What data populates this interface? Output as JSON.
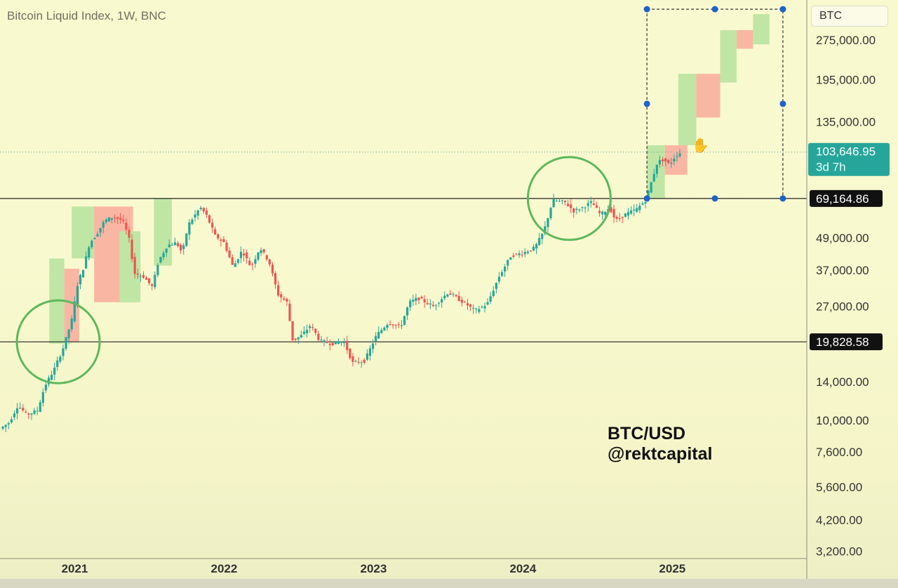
{
  "chart_title": "Bitcoin Liquid Index, 1W, BNC",
  "ticker": "BTC",
  "watermark": {
    "line1": "BTC/USD",
    "line2": "@rektcapital"
  },
  "chart_data": {
    "type": "candlestick",
    "title": "Bitcoin Liquid Index, 1W, BNC",
    "y_scale": "log",
    "ylim": [
      3000,
      390000
    ],
    "xlim": [
      2020.5,
      2025.9
    ],
    "y_ticks": [
      {
        "value": 275000,
        "label": "275,000.00"
      },
      {
        "value": 195000,
        "label": "195,000.00"
      },
      {
        "value": 135000,
        "label": "135,000.00"
      },
      {
        "value": 49000,
        "label": "49,000.00"
      },
      {
        "value": 37000,
        "label": "37,000.00"
      },
      {
        "value": 27000,
        "label": "27,000.00"
      },
      {
        "value": 14000,
        "label": "14,000.00"
      },
      {
        "value": 10000,
        "label": "10,000.00"
      },
      {
        "value": 7600,
        "label": "7,600.00"
      },
      {
        "value": 5600,
        "label": "5,600.00"
      },
      {
        "value": 4200,
        "label": "4,200.00"
      },
      {
        "value": 3200,
        "label": "3,200.00"
      }
    ],
    "x_ticks": [
      {
        "value": 2021,
        "label": "2021"
      },
      {
        "value": 2022,
        "label": "2022"
      },
      {
        "value": 2023,
        "label": "2023"
      },
      {
        "value": 2024,
        "label": "2024"
      },
      {
        "value": 2025,
        "label": "2025"
      }
    ],
    "horizontal_levels": [
      {
        "value": 69164.86,
        "label": "69,164.86"
      },
      {
        "value": 19828.58,
        "label": "19,828.58"
      }
    ],
    "current_price": {
      "value": 103646.95,
      "label": "103,646.95",
      "countdown": "3d 7h"
    },
    "price_path": [
      [
        2020.5,
        9300
      ],
      [
        2020.56,
        9800
      ],
      [
        2020.62,
        11400
      ],
      [
        2020.68,
        10500
      ],
      [
        2020.75,
        10900
      ],
      [
        2020.8,
        13500
      ],
      [
        2020.86,
        15500
      ],
      [
        2020.92,
        18600
      ],
      [
        2020.98,
        24000
      ],
      [
        2021.02,
        33000
      ],
      [
        2021.06,
        38000
      ],
      [
        2021.1,
        47000
      ],
      [
        2021.14,
        50000
      ],
      [
        2021.2,
        57000
      ],
      [
        2021.26,
        59000
      ],
      [
        2021.32,
        57000
      ],
      [
        2021.36,
        50000
      ],
      [
        2021.4,
        36000
      ],
      [
        2021.46,
        35000
      ],
      [
        2021.52,
        32000
      ],
      [
        2021.56,
        40000
      ],
      [
        2021.62,
        46000
      ],
      [
        2021.68,
        47000
      ],
      [
        2021.72,
        43000
      ],
      [
        2021.76,
        55000
      ],
      [
        2021.84,
        64000
      ],
      [
        2021.88,
        60000
      ],
      [
        2021.94,
        50000
      ],
      [
        2022.0,
        47000
      ],
      [
        2022.06,
        38000
      ],
      [
        2022.12,
        44000
      ],
      [
        2022.18,
        38000
      ],
      [
        2022.24,
        45000
      ],
      [
        2022.3,
        40000
      ],
      [
        2022.36,
        30000
      ],
      [
        2022.42,
        28000
      ],
      [
        2022.46,
        20000
      ],
      [
        2022.52,
        21000
      ],
      [
        2022.58,
        23000
      ],
      [
        2022.64,
        20000
      ],
      [
        2022.72,
        19500
      ],
      [
        2022.8,
        20000
      ],
      [
        2022.86,
        16500
      ],
      [
        2022.94,
        16800
      ],
      [
        2023.02,
        21000
      ],
      [
        2023.1,
        23500
      ],
      [
        2023.18,
        22500
      ],
      [
        2023.24,
        28000
      ],
      [
        2023.3,
        29000
      ],
      [
        2023.4,
        27000
      ],
      [
        2023.5,
        30500
      ],
      [
        2023.6,
        28000
      ],
      [
        2023.68,
        26000
      ],
      [
        2023.76,
        27500
      ],
      [
        2023.84,
        35000
      ],
      [
        2023.92,
        42000
      ],
      [
        2024.0,
        43000
      ],
      [
        2024.08,
        45000
      ],
      [
        2024.14,
        52000
      ],
      [
        2024.2,
        68000
      ],
      [
        2024.28,
        67000
      ],
      [
        2024.34,
        62000
      ],
      [
        2024.4,
        64000
      ],
      [
        2024.46,
        67000
      ],
      [
        2024.52,
        60000
      ],
      [
        2024.58,
        64000
      ],
      [
        2024.62,
        57000
      ],
      [
        2024.68,
        60000
      ],
      [
        2024.76,
        63000
      ],
      [
        2024.82,
        68000
      ],
      [
        2024.86,
        80000
      ],
      [
        2024.9,
        95000
      ],
      [
        2024.94,
        97000
      ],
      [
        2024.98,
        93000
      ],
      [
        2025.02,
        100000
      ],
      [
        2025.06,
        103646.95
      ]
    ],
    "projection_boxes": [
      {
        "direction": "up",
        "x0": 2020.83,
        "x1": 2020.93,
        "low": 19500,
        "high": 41000
      },
      {
        "direction": "down",
        "x0": 2020.93,
        "x1": 2021.03,
        "low": 19800,
        "high": 37500
      },
      {
        "direction": "up",
        "x0": 2020.98,
        "x1": 2021.13,
        "low": 41000,
        "high": 64500
      },
      {
        "direction": "down",
        "x0": 2021.13,
        "x1": 2021.39,
        "low": 28000,
        "high": 64500
      },
      {
        "direction": "up",
        "x0": 2021.3,
        "x1": 2021.44,
        "low": 28000,
        "high": 52000
      },
      {
        "direction": "up",
        "x0": 2021.53,
        "x1": 2021.65,
        "low": 38500,
        "high": 69000
      },
      {
        "direction": "up",
        "x0": 2024.83,
        "x1": 2024.95,
        "low": 69164.86,
        "high": 110000
      },
      {
        "direction": "down",
        "x0": 2024.95,
        "x1": 2025.1,
        "low": 85000,
        "high": 110000
      },
      {
        "direction": "up",
        "x0": 2025.04,
        "x1": 2025.16,
        "low": 110000,
        "high": 205000
      },
      {
        "direction": "down",
        "x0": 2025.16,
        "x1": 2025.32,
        "low": 140000,
        "high": 205000
      },
      {
        "direction": "up",
        "x0": 2025.32,
        "x1": 2025.43,
        "low": 190000,
        "high": 300000
      },
      {
        "direction": "down",
        "x0": 2025.43,
        "x1": 2025.54,
        "low": 255000,
        "high": 300000
      },
      {
        "direction": "up",
        "x0": 2025.54,
        "x1": 2025.65,
        "low": 265000,
        "high": 345000
      }
    ],
    "highlight_circles": [
      {
        "x": 2020.89,
        "y": 19828.58
      },
      {
        "x": 2024.31,
        "y": 69164.86
      }
    ],
    "selection_box": {
      "x0": 2024.83,
      "x1": 2025.74,
      "low": 69164.86,
      "high": 360000
    },
    "colors": {
      "up": "#26a69a",
      "down": "#ef5350",
      "up_box": "#bfe6a4",
      "down_box": "#f9b7a3",
      "circle": "#5cb85c",
      "selection": "#1e63c7",
      "current_price_bg": "#26a69a"
    }
  }
}
